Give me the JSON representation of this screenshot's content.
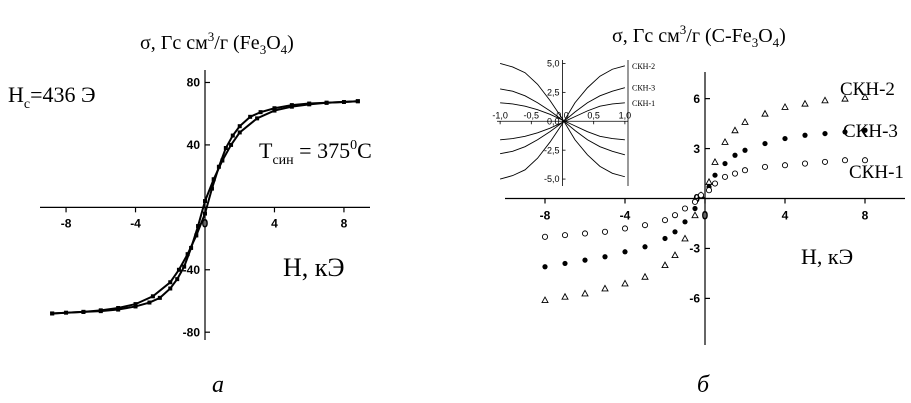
{
  "panel_labels": {
    "a": "a",
    "b": "б"
  },
  "chart_data": [
    {
      "type": "line",
      "title_prefix": "σ, Гс см",
      "title_sup": "3",
      "title_mid": "/г (Fe",
      "title_sub1": "3",
      "title_o": "O",
      "title_sub2": "4",
      "title_end": ")",
      "xlabel": "H, кЭ",
      "xlim": [
        -9.5,
        9.5
      ],
      "ylim": [
        -85,
        88
      ],
      "xticks": [
        -8,
        -4,
        0,
        4,
        8
      ],
      "xticklabels": [
        "-8",
        "-4",
        "0",
        "4",
        "8"
      ],
      "yticks": [
        80,
        40,
        -40,
        -80
      ],
      "yticklabels": [
        "80",
        "40",
        "-40",
        "-80"
      ],
      "annotation_hc_main": "H",
      "annotation_hc_sub": "c",
      "annotation_hc_value": "=436 Э",
      "annotation_t_main": "T",
      "annotation_t_sub": "син",
      "annotation_t_value": " = 375",
      "annotation_t_sup": "0",
      "annotation_t_unit": "C",
      "series": [
        {
          "branch": "descending",
          "x": [
            8.8,
            7.0,
            6.0,
            5.0,
            4.0,
            3.0,
            2.0,
            1.5,
            1.0,
            0.5,
            0.0,
            -0.4,
            -0.8,
            -1.2,
            -1.6,
            -2.0,
            -2.6,
            -3.2,
            -4.0,
            -5.0,
            -6.0,
            -7.0,
            -8.0,
            -8.8
          ],
          "y": [
            68,
            67,
            66,
            64.5,
            62,
            57,
            48,
            40,
            30,
            18,
            4,
            -12,
            -26,
            -38,
            -46,
            -52,
            -58,
            -61,
            -63.5,
            -65.5,
            -66.5,
            -67,
            -67.5,
            -68
          ]
        },
        {
          "branch": "ascending",
          "x": [
            -8.8,
            -7.0,
            -6.0,
            -5.0,
            -4.0,
            -3.0,
            -2.0,
            -1.5,
            -1.0,
            -0.5,
            0.0,
            0.4,
            0.8,
            1.2,
            1.6,
            2.0,
            2.6,
            3.2,
            4.0,
            5.0,
            6.0,
            7.0,
            8.0,
            8.8
          ],
          "y": [
            -68,
            -67,
            -66,
            -64.5,
            -62,
            -57,
            -48,
            -40,
            -30,
            -18,
            -4,
            12,
            26,
            38,
            46,
            52,
            58,
            61,
            63.5,
            65.5,
            66.5,
            67,
            67.5,
            68
          ]
        }
      ]
    },
    {
      "type": "scatter",
      "title_prefix": "σ, Гс см",
      "title_sup": "3",
      "title_mid": "/г (C-Fe",
      "title_sub1": "3",
      "title_o": "O",
      "title_sub2": "4",
      "title_end": ")",
      "xlabel": "H, кЭ",
      "xlim": [
        -10,
        10
      ],
      "ylim": [
        -8.8,
        7.6
      ],
      "xticks": [
        -8,
        -4,
        0,
        4,
        8
      ],
      "xticklabels": [
        "-8",
        "-4",
        "0",
        "4",
        "8"
      ],
      "yticks": [
        6,
        3,
        0,
        -3,
        -6
      ],
      "yticklabels": [
        "6",
        "3",
        "0",
        "-3",
        "-6"
      ],
      "series": [
        {
          "name": "СКН-2",
          "marker": "triangle",
          "x": [
            -8,
            -7,
            -6,
            -5,
            -4,
            -3,
            -2,
            -1.5,
            -1,
            -0.5,
            -0.2,
            0.2,
            0.5,
            1,
            1.5,
            2,
            3,
            4,
            5,
            6,
            7,
            8
          ],
          "y": [
            -6.1,
            -5.9,
            -5.7,
            -5.4,
            -5.1,
            -4.7,
            -4.0,
            -3.4,
            -2.4,
            -1.0,
            0.2,
            1.0,
            2.2,
            3.4,
            4.1,
            4.6,
            5.1,
            5.5,
            5.7,
            5.9,
            6.0,
            6.1
          ]
        },
        {
          "name": "СКН-3",
          "marker": "filled-circle",
          "x": [
            -8,
            -7,
            -6,
            -5,
            -4,
            -3,
            -2,
            -1.5,
            -1,
            -0.5,
            -0.2,
            0.2,
            0.5,
            1,
            1.5,
            2,
            3,
            4,
            5,
            6,
            7,
            8
          ],
          "y": [
            -4.1,
            -3.9,
            -3.7,
            -3.5,
            -3.2,
            -2.9,
            -2.4,
            -2.0,
            -1.4,
            -0.6,
            0.2,
            0.7,
            1.4,
            2.1,
            2.6,
            2.9,
            3.3,
            3.6,
            3.8,
            3.9,
            4.0,
            4.1
          ]
        },
        {
          "name": "СКН-1",
          "marker": "open-circle",
          "x": [
            -8,
            -7,
            -6,
            -5,
            -4,
            -3,
            -2,
            -1.5,
            -1,
            -0.5,
            -0.2,
            0.2,
            0.5,
            1,
            1.5,
            2,
            3,
            4,
            5,
            6,
            7,
            8
          ],
          "y": [
            -2.3,
            -2.2,
            -2.1,
            -2.0,
            -1.8,
            -1.6,
            -1.3,
            -1.0,
            -0.6,
            -0.2,
            0.2,
            0.5,
            0.9,
            1.3,
            1.5,
            1.7,
            1.9,
            2.0,
            2.1,
            2.2,
            2.3,
            2.3
          ]
        }
      ]
    },
    {
      "type": "line",
      "role": "inset",
      "xlim": [
        -1.05,
        1.05
      ],
      "ylim": [
        -5.6,
        5.3
      ],
      "xticks": [
        -1.0,
        -0.5,
        0,
        0.5,
        1.0
      ],
      "xticklabels": [
        "-1,0",
        "-0,5",
        "0,0",
        "0,5",
        "1,0"
      ],
      "yticks": [
        5.0,
        2.5,
        0,
        -2.5,
        -5.0
      ],
      "yticklabels": [
        "5,0",
        "2,5",
        "0,0",
        "-2,5",
        "-5,0"
      ],
      "series": [
        {
          "name": "СКН-2",
          "x": [
            -1.0,
            -0.8,
            -0.6,
            -0.4,
            -0.2,
            0.0,
            0.2,
            0.4,
            0.6,
            0.8,
            1.0
          ],
          "y": [
            -5.0,
            -4.7,
            -4.2,
            -3.2,
            -1.8,
            -0.2,
            1.6,
            2.9,
            3.9,
            4.5,
            4.8
          ],
          "y_return": [
            5.0,
            4.7,
            4.2,
            3.2,
            1.8,
            0.2,
            -1.6,
            -2.9,
            -3.9,
            -4.5,
            -4.8
          ]
        },
        {
          "name": "СКН-3",
          "x": [
            -1.0,
            -0.8,
            -0.6,
            -0.4,
            -0.2,
            0.0,
            0.2,
            0.4,
            0.6,
            0.8,
            1.0
          ],
          "y": [
            -2.8,
            -2.6,
            -2.2,
            -1.6,
            -0.9,
            -0.1,
            0.8,
            1.6,
            2.2,
            2.6,
            2.9
          ],
          "y_return": [
            2.8,
            2.6,
            2.2,
            1.6,
            0.9,
            0.1,
            -0.8,
            -1.6,
            -2.2,
            -2.6,
            -2.9
          ]
        },
        {
          "name": "СКН-1",
          "x": [
            -1.0,
            -0.8,
            -0.6,
            -0.4,
            -0.2,
            0.0,
            0.2,
            0.4,
            0.6,
            0.8,
            1.0
          ],
          "y": [
            -1.6,
            -1.5,
            -1.3,
            -1.0,
            -0.6,
            -0.1,
            0.4,
            0.9,
            1.3,
            1.5,
            1.6
          ],
          "y_return": [
            1.6,
            1.5,
            1.3,
            1.0,
            0.6,
            0.1,
            -0.4,
            -0.9,
            -1.3,
            -1.5,
            -1.6
          ]
        }
      ]
    }
  ]
}
